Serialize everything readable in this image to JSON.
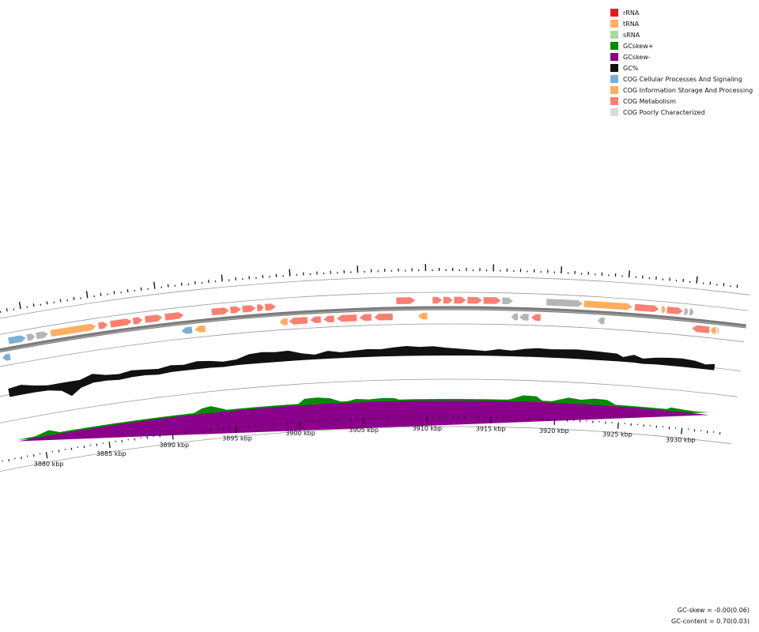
{
  "legend": [
    {
      "label": "rRNA",
      "color": "#e41a1c"
    },
    {
      "label": "tRNA",
      "color": "#fdae61"
    },
    {
      "label": "sRNA",
      "color": "#a6dba0"
    },
    {
      "label": "GCskew+",
      "color": "#008a00"
    },
    {
      "label": "GCskew-",
      "color": "#8b008b"
    },
    {
      "label": "GC%",
      "color": "#111111"
    },
    {
      "label": "COG Cellular Processes And Signaling",
      "color": "#7bafd4"
    },
    {
      "label": "COG Information Storage And Processing",
      "color": "#fdae61"
    },
    {
      "label": "COG Metabolism",
      "color": "#fa8072"
    },
    {
      "label": "COG Poorly Characterized",
      "color": "#d9d9d9"
    }
  ],
  "stats": {
    "gc_skew": "GC-skew = -0.00(0.06)",
    "gc_content": "GC-content = 0.70(0.03)"
  },
  "axis": {
    "unit": "kbp",
    "labels": [
      "3880 kbp",
      "3885 kbp",
      "3890 kbp",
      "3895 kbp",
      "3900 kbp",
      "3905 kbp",
      "3910 kbp",
      "3915 kbp",
      "3920 kbp",
      "3925 kbp",
      "3930 kbp"
    ],
    "start_kbp": 3878,
    "end_kbp": 3932
  },
  "genes": [
    {
      "start": 3878.0,
      "end": 3878.6,
      "strand": "-",
      "cog": "C"
    },
    {
      "start": 3878.7,
      "end": 3880.0,
      "strand": "+",
      "cog": "C"
    },
    {
      "start": 3880.1,
      "end": 3880.7,
      "strand": "+",
      "cog": "P"
    },
    {
      "start": 3880.8,
      "end": 3881.7,
      "strand": "+",
      "cog": "P"
    },
    {
      "start": 3881.9,
      "end": 3885.3,
      "strand": "+",
      "cog": "I"
    },
    {
      "start": 3885.5,
      "end": 3886.2,
      "strand": "+",
      "cog": "M"
    },
    {
      "start": 3886.4,
      "end": 3888.0,
      "strand": "+",
      "cog": "M"
    },
    {
      "start": 3888.1,
      "end": 3888.8,
      "strand": "+",
      "cog": "M"
    },
    {
      "start": 3889.0,
      "end": 3890.3,
      "strand": "+",
      "cog": "M"
    },
    {
      "start": 3890.5,
      "end": 3891.9,
      "strand": "+",
      "cog": "M"
    },
    {
      "start": 3891.6,
      "end": 3892.4,
      "strand": "-",
      "cog": "C"
    },
    {
      "start": 3892.6,
      "end": 3893.4,
      "strand": "-",
      "cog": "I"
    },
    {
      "start": 3894.0,
      "end": 3895.3,
      "strand": "+",
      "cog": "M"
    },
    {
      "start": 3895.4,
      "end": 3896.2,
      "strand": "+",
      "cog": "M"
    },
    {
      "start": 3896.3,
      "end": 3897.3,
      "strand": "+",
      "cog": "M"
    },
    {
      "start": 3897.4,
      "end": 3897.9,
      "strand": "+",
      "cog": "M"
    },
    {
      "start": 3898.0,
      "end": 3898.8,
      "strand": "+",
      "cog": "M"
    },
    {
      "start": 3899.0,
      "end": 3899.6,
      "strand": "-",
      "cog": "I"
    },
    {
      "start": 3899.7,
      "end": 3901.1,
      "strand": "-",
      "cog": "M"
    },
    {
      "start": 3901.3,
      "end": 3902.1,
      "strand": "-",
      "cog": "M"
    },
    {
      "start": 3902.3,
      "end": 3903.1,
      "strand": "-",
      "cog": "M"
    },
    {
      "start": 3903.3,
      "end": 3904.8,
      "strand": "-",
      "cog": "M"
    },
    {
      "start": 3905.0,
      "end": 3905.9,
      "strand": "-",
      "cog": "M"
    },
    {
      "start": 3906.1,
      "end": 3907.5,
      "strand": "-",
      "cog": "M"
    },
    {
      "start": 3907.8,
      "end": 3909.2,
      "strand": "+",
      "cog": "M"
    },
    {
      "start": 3909.4,
      "end": 3910.1,
      "strand": "-",
      "cog": "I"
    },
    {
      "start": 3910.5,
      "end": 3911.2,
      "strand": "+",
      "cog": "M"
    },
    {
      "start": 3911.3,
      "end": 3912.0,
      "strand": "+",
      "cog": "M"
    },
    {
      "start": 3912.1,
      "end": 3913.0,
      "strand": "+",
      "cog": "M"
    },
    {
      "start": 3913.1,
      "end": 3914.2,
      "strand": "+",
      "cog": "M"
    },
    {
      "start": 3914.3,
      "end": 3915.6,
      "strand": "+",
      "cog": "M"
    },
    {
      "start": 3915.7,
      "end": 3916.5,
      "strand": "+",
      "cog": "P"
    },
    {
      "start": 3916.4,
      "end": 3916.9,
      "strand": "-",
      "cog": "P"
    },
    {
      "start": 3917.0,
      "end": 3917.7,
      "strand": "-",
      "cog": "P"
    },
    {
      "start": 3917.9,
      "end": 3918.6,
      "strand": "-",
      "cog": "M"
    },
    {
      "start": 3919.0,
      "end": 3921.7,
      "strand": "+",
      "cog": "P"
    },
    {
      "start": 3921.8,
      "end": 3925.4,
      "strand": "+",
      "cog": "I"
    },
    {
      "start": 3922.9,
      "end": 3923.4,
      "strand": "-",
      "cog": "P"
    },
    {
      "start": 3925.6,
      "end": 3927.4,
      "strand": "+",
      "cog": "M"
    },
    {
      "start": 3927.6,
      "end": 3927.9,
      "strand": "+",
      "cog": "I"
    },
    {
      "start": 3928.0,
      "end": 3929.2,
      "strand": "+",
      "cog": "M"
    },
    {
      "start": 3929.3,
      "end": 3929.6,
      "strand": "+",
      "cog": "P"
    },
    {
      "start": 3929.7,
      "end": 3930.0,
      "strand": "+",
      "cog": "P"
    },
    {
      "start": 3930.0,
      "end": 3931.3,
      "strand": "-",
      "cog": "M"
    },
    {
      "start": 3931.4,
      "end": 3931.8,
      "strand": "-",
      "cog": "I"
    },
    {
      "start": 3931.9,
      "end": 3932.0,
      "strand": "-",
      "cog": "I"
    }
  ],
  "gc_content": [
    {
      "kbp": 3878.0,
      "dev": 0.35
    },
    {
      "kbp": 3879.0,
      "dev": 0.5
    },
    {
      "kbp": 3880.0,
      "dev": 0.2
    },
    {
      "kbp": 3881.0,
      "dev": -0.05
    },
    {
      "kbp": 3882.0,
      "dev": -0.3
    },
    {
      "kbp": 3882.7,
      "dev": -0.95
    },
    {
      "kbp": 3883.5,
      "dev": -0.3
    },
    {
      "kbp": 3884.5,
      "dev": 0.4
    },
    {
      "kbp": 3885.5,
      "dev": 0.1
    },
    {
      "kbp": 3886.5,
      "dev": -0.1
    },
    {
      "kbp": 3887.5,
      "dev": 0.2
    },
    {
      "kbp": 3888.5,
      "dev": 0.1
    },
    {
      "kbp": 3889.5,
      "dev": -0.1
    },
    {
      "kbp": 3890.5,
      "dev": 0.2
    },
    {
      "kbp": 3891.5,
      "dev": 0.1
    },
    {
      "kbp": 3892.5,
      "dev": 0.3
    },
    {
      "kbp": 3893.5,
      "dev": 0.2
    },
    {
      "kbp": 3894.5,
      "dev": -0.05
    },
    {
      "kbp": 3895.5,
      "dev": 0.1
    },
    {
      "kbp": 3896.5,
      "dev": 0.5
    },
    {
      "kbp": 3897.5,
      "dev": 0.6
    },
    {
      "kbp": 3898.5,
      "dev": 0.5
    },
    {
      "kbp": 3899.5,
      "dev": 0.55
    },
    {
      "kbp": 3900.5,
      "dev": 0.2
    },
    {
      "kbp": 3901.5,
      "dev": 0.0
    },
    {
      "kbp": 3902.5,
      "dev": 0.3
    },
    {
      "kbp": 3903.5,
      "dev": 0.1
    },
    {
      "kbp": 3904.5,
      "dev": 0.2
    },
    {
      "kbp": 3905.5,
      "dev": 0.3
    },
    {
      "kbp": 3906.5,
      "dev": 0.25
    },
    {
      "kbp": 3907.5,
      "dev": 0.4
    },
    {
      "kbp": 3908.5,
      "dev": 0.5
    },
    {
      "kbp": 3909.5,
      "dev": 0.4
    },
    {
      "kbp": 3910.5,
      "dev": 0.45
    },
    {
      "kbp": 3911.5,
      "dev": 0.3
    },
    {
      "kbp": 3912.5,
      "dev": 0.2
    },
    {
      "kbp": 3913.5,
      "dev": 0.1
    },
    {
      "kbp": 3914.5,
      "dev": 0.0
    },
    {
      "kbp": 3915.5,
      "dev": 0.2
    },
    {
      "kbp": 3916.5,
      "dev": 0.1
    },
    {
      "kbp": 3917.5,
      "dev": 0.3
    },
    {
      "kbp": 3918.5,
      "dev": 0.4
    },
    {
      "kbp": 3919.5,
      "dev": 0.35
    },
    {
      "kbp": 3920.5,
      "dev": 0.4
    },
    {
      "kbp": 3921.5,
      "dev": 0.45
    },
    {
      "kbp": 3922.5,
      "dev": 0.4
    },
    {
      "kbp": 3923.5,
      "dev": 0.35
    },
    {
      "kbp": 3924.5,
      "dev": 0.3
    },
    {
      "kbp": 3925.0,
      "dev": 0.0
    },
    {
      "kbp": 3925.8,
      "dev": 0.3
    },
    {
      "kbp": 3926.5,
      "dev": -0.05
    },
    {
      "kbp": 3927.5,
      "dev": 0.2
    },
    {
      "kbp": 3928.5,
      "dev": 0.3
    },
    {
      "kbp": 3929.5,
      "dev": 0.35
    },
    {
      "kbp": 3930.5,
      "dev": 0.25
    },
    {
      "kbp": 3931.3,
      "dev": 0.0
    },
    {
      "kbp": 3932.0,
      "dev": 0.15
    }
  ],
  "gc_skew": [
    {
      "kbp": 3878.0,
      "v": -0.4
    },
    {
      "kbp": 3879.5,
      "v": 0.05
    },
    {
      "kbp": 3880.5,
      "v": 0.4
    },
    {
      "kbp": 3881.5,
      "v": -0.1
    },
    {
      "kbp": 3882.5,
      "v": -0.2
    },
    {
      "kbp": 3884.0,
      "v": -0.15
    },
    {
      "kbp": 3885.5,
      "v": -0.2
    },
    {
      "kbp": 3886.5,
      "v": -0.7
    },
    {
      "kbp": 3887.5,
      "v": -1.0
    },
    {
      "kbp": 3888.5,
      "v": -0.8
    },
    {
      "kbp": 3889.5,
      "v": -0.5
    },
    {
      "kbp": 3890.5,
      "v": -0.05
    },
    {
      "kbp": 3891.5,
      "v": -0.2
    },
    {
      "kbp": 3892.5,
      "v": 0.4
    },
    {
      "kbp": 3893.2,
      "v": 0.55
    },
    {
      "kbp": 3894.0,
      "v": 0.2
    },
    {
      "kbp": 3895.0,
      "v": -0.3
    },
    {
      "kbp": 3896.0,
      "v": -0.2
    },
    {
      "kbp": 3897.0,
      "v": -0.15
    },
    {
      "kbp": 3898.0,
      "v": -0.3
    },
    {
      "kbp": 3899.0,
      "v": -0.4
    },
    {
      "kbp": 3899.8,
      "v": -0.2
    },
    {
      "kbp": 3900.5,
      "v": 0.5
    },
    {
      "kbp": 3901.5,
      "v": 0.55
    },
    {
      "kbp": 3902.5,
      "v": 0.4
    },
    {
      "kbp": 3903.5,
      "v": -0.1
    },
    {
      "kbp": 3904.5,
      "v": 0.2
    },
    {
      "kbp": 3905.5,
      "v": 0.1
    },
    {
      "kbp": 3906.5,
      "v": 0.2
    },
    {
      "kbp": 3907.5,
      "v": 0.15
    },
    {
      "kbp": 3908.5,
      "v": -0.3
    },
    {
      "kbp": 3909.5,
      "v": -0.35
    },
    {
      "kbp": 3910.5,
      "v": -0.2
    },
    {
      "kbp": 3911.5,
      "v": -0.3
    },
    {
      "kbp": 3912.5,
      "v": -0.4
    },
    {
      "kbp": 3913.5,
      "v": -0.3
    },
    {
      "kbp": 3914.5,
      "v": -0.25
    },
    {
      "kbp": 3915.5,
      "v": -0.1
    },
    {
      "kbp": 3916.5,
      "v": 0.05
    },
    {
      "kbp": 3917.5,
      "v": 0.5
    },
    {
      "kbp": 3918.5,
      "v": 0.45
    },
    {
      "kbp": 3919.2,
      "v": -0.2
    },
    {
      "kbp": 3920.0,
      "v": 0.1
    },
    {
      "kbp": 3921.0,
      "v": 0.45
    },
    {
      "kbp": 3922.0,
      "v": 0.3
    },
    {
      "kbp": 3923.0,
      "v": 0.5
    },
    {
      "kbp": 3924.0,
      "v": 0.45
    },
    {
      "kbp": 3925.0,
      "v": -0.2
    },
    {
      "kbp": 3926.0,
      "v": -0.7
    },
    {
      "kbp": 3927.0,
      "v": -0.75
    },
    {
      "kbp": 3928.0,
      "v": -0.4
    },
    {
      "kbp": 3929.0,
      "v": 0.2
    },
    {
      "kbp": 3930.0,
      "v": 0.1
    },
    {
      "kbp": 3931.0,
      "v": 0.05
    },
    {
      "kbp": 3932.0,
      "v": 0.1
    }
  ]
}
